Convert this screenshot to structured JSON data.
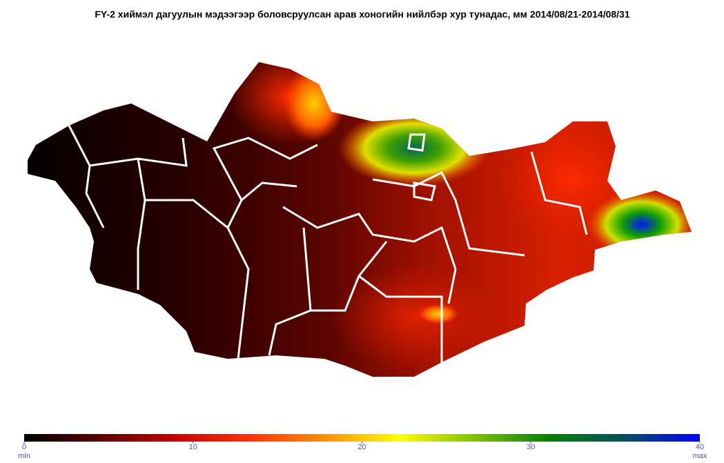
{
  "title": "FY-2  хиймэл дагуулын мэдээгээр боловсруулсан арав хоногийн нийлбэр хур тунадас, мм 2014/08/21-2014/08/31",
  "colorbar": {
    "range": [
      0,
      40
    ],
    "ticks": [
      0,
      10,
      20,
      30,
      40
    ],
    "min_label": "min",
    "max_label": "max",
    "colors": [
      "#000000",
      "#5a0000",
      "#c80000",
      "#ff3000",
      "#ff9000",
      "#ffff00",
      "#80c000",
      "#008000",
      "#005060",
      "#0000ff"
    ]
  }
}
